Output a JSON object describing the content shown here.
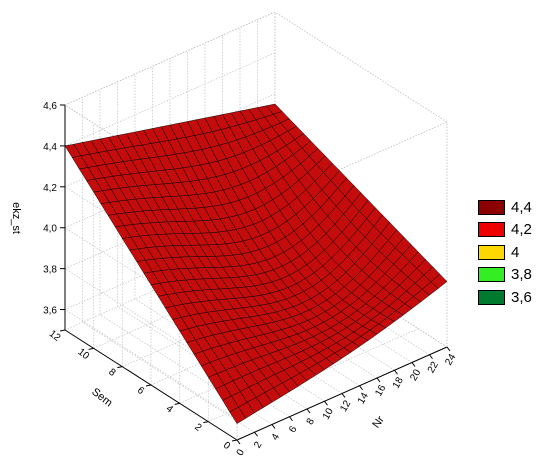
{
  "chart_data": {
    "type": "surface3d",
    "title": "",
    "xlabel": "Nr",
    "ylabel": "Sem",
    "zlabel": "ekz_st",
    "x_ticks": [
      "0",
      "2",
      "4",
      "6",
      "8",
      "10",
      "12",
      "14",
      "16",
      "18",
      "20",
      "22",
      "24"
    ],
    "y_ticks": [
      "0",
      "2",
      "4",
      "6",
      "8",
      "10",
      "12"
    ],
    "z_ticks": [
      "3,6",
      "3,8",
      "4,0",
      "4,2",
      "4,4",
      "4,6"
    ],
    "xlim": [
      0,
      24
    ],
    "ylim": [
      0,
      12
    ],
    "zlim": [
      3.5,
      4.6
    ],
    "grid": true,
    "legend_position": "right",
    "legend": [
      {
        "label": "4,4",
        "color": "#8b0000"
      },
      {
        "label": "4,2",
        "color": "#ee0000"
      },
      {
        "label": "4",
        "color": "#ffd700"
      },
      {
        "label": "3,8",
        "color": "#33ee22"
      },
      {
        "label": "3,6",
        "color": "#007a2e"
      }
    ],
    "surface_colors": {
      "front": "#c40c0c",
      "back": "#c8c8c8"
    },
    "corner_values": [
      {
        "x": 0,
        "y": 12,
        "z": 4.4
      },
      {
        "x": 24,
        "y": 12,
        "z": 4.15
      },
      {
        "x": 24,
        "y": 0,
        "z": 3.82
      },
      {
        "x": 0,
        "y": 0,
        "z": 3.58
      }
    ]
  }
}
